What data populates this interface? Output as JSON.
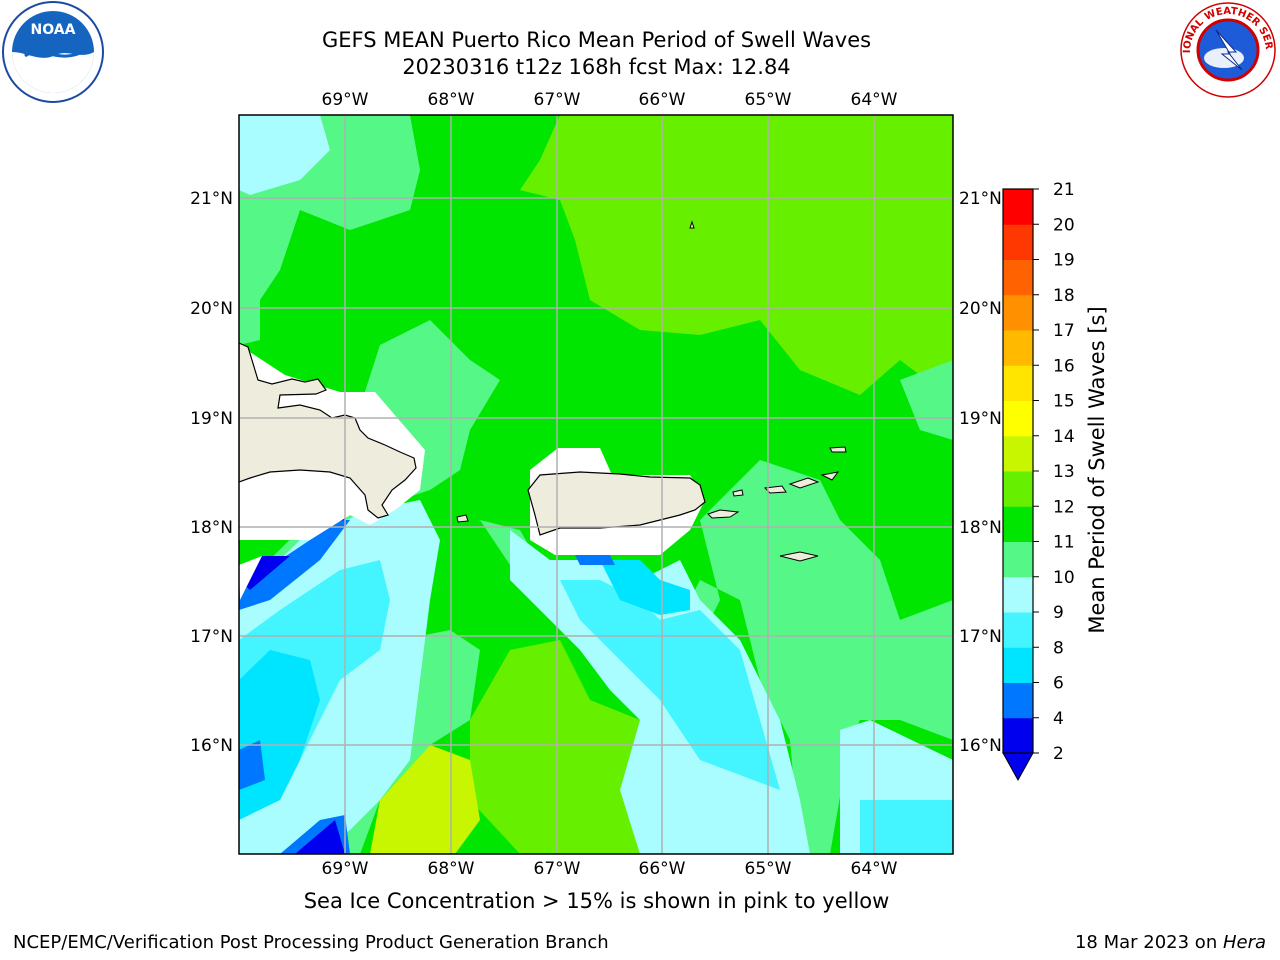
{
  "header": {
    "title_line1": "GEFS MEAN Puerto Rico Mean Period of Swell Waves",
    "title_line2": "20230316 t12z 168h fcst   Max: 12.84"
  },
  "logos": {
    "left": "NOAA",
    "right": "NATIONAL WEATHER SERVICE"
  },
  "map": {
    "lon_labels": [
      "69°W",
      "68°W",
      "67°W",
      "66°W",
      "65°W",
      "64°W"
    ],
    "lat_labels": [
      "21°N",
      "20°N",
      "19°N",
      "18°N",
      "17°N",
      "16°N"
    ],
    "colors": {
      "land": "#eeecdc",
      "coast": "#000000",
      "grid": "#b0b0b0"
    }
  },
  "colorbar": {
    "title": "Mean Period of Swell Waves [s]",
    "ticks": [
      "21",
      "20",
      "19",
      "18",
      "17",
      "16",
      "15",
      "14",
      "13",
      "12",
      "11",
      "10",
      "9",
      "8",
      "6",
      "4",
      "2"
    ],
    "colors": [
      "#0000ee",
      "#0077ff",
      "#00e5ff",
      "#44f5ff",
      "#a9fdfe",
      "#55f787",
      "#00e600",
      "#66f000",
      "#c8f500",
      "#ffff00",
      "#ffe500",
      "#ffba00",
      "#ff9100",
      "#ff6200",
      "#ff3700",
      "#ff0000"
    ]
  },
  "footer": {
    "note": "Sea Ice Concentration > 15% is shown in pink to yellow",
    "left": "NCEP/EMC/Verification Post Processing Product Generation Branch",
    "right_date": "18 Mar 2023 on ",
    "right_machine": "Hera"
  }
}
